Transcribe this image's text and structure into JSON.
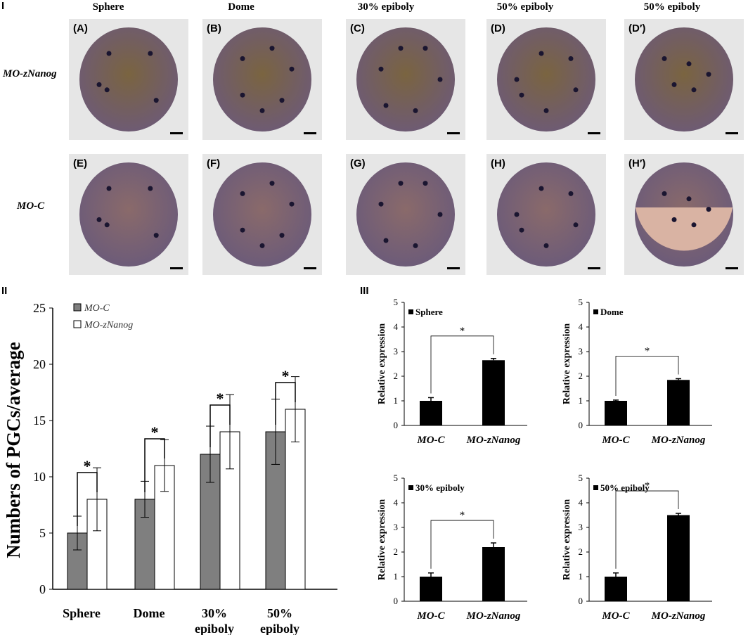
{
  "panel_labels": {
    "p1": "I",
    "p2": "II",
    "p3": "III"
  },
  "stages": [
    "Sphere",
    "Dome",
    "30% epiboly",
    "50% epiboly",
    "50% epiboly"
  ],
  "rows": [
    "MO-zNanog",
    "MO-C"
  ],
  "image_labels": [
    [
      "(A)",
      "(B)",
      "(C)",
      "(D)",
      "(D′)"
    ],
    [
      "(E)",
      "(F)",
      "(G)",
      "(H)",
      "(H′)"
    ]
  ],
  "colors": {
    "mo_c": "#7f7f7f",
    "mo_znanog": "#ffffff",
    "bar_black": "#000000",
    "embryo_top": "#7d6a55",
    "embryo_bottom": "#6a5a72"
  },
  "chart_data": [
    {
      "type": "bar",
      "ylabel": "Numbers of PGCs/average",
      "ylim": [
        0,
        25
      ],
      "yticks": [
        0,
        5,
        10,
        15,
        20,
        25
      ],
      "categories": [
        "Sphere",
        "Dome",
        "30% epiboly",
        "50% epiboly"
      ],
      "category_lines": [
        [
          "Sphere"
        ],
        [
          "Dome"
        ],
        [
          "30%",
          "epiboly"
        ],
        [
          "50%",
          "epiboly"
        ]
      ],
      "legend": "top-left",
      "significance": "*",
      "series": [
        {
          "name": "MO-C",
          "values": [
            5,
            8,
            12,
            14
          ],
          "errors": [
            1.5,
            1.6,
            2.5,
            2.9
          ]
        },
        {
          "name": "MO-zNanog",
          "values": [
            8,
            11,
            14,
            16
          ],
          "errors": [
            2.8,
            2.3,
            3.3,
            2.9
          ]
        }
      ]
    },
    {
      "type": "bar",
      "title": "Sphere",
      "ylabel": "Relative expression",
      "ylim": [
        0,
        5
      ],
      "categories": [
        "MO-C",
        "MO-zNanog"
      ],
      "values": [
        1.0,
        2.65
      ],
      "errors": [
        0.13,
        0.07
      ],
      "significance": "*"
    },
    {
      "type": "bar",
      "title": "Dome",
      "ylabel": "Relative expression",
      "ylim": [
        0,
        5
      ],
      "categories": [
        "MO-C",
        "MO-zNanog"
      ],
      "values": [
        1.0,
        1.85
      ],
      "errors": [
        0.03,
        0.05
      ],
      "significance": "*"
    },
    {
      "type": "bar",
      "title": "30% epiboly",
      "ylabel": "Relative expression",
      "ylim": [
        0,
        5
      ],
      "categories": [
        "MO-C",
        "MO-zNanog"
      ],
      "values": [
        1.0,
        2.2
      ],
      "errors": [
        0.15,
        0.17
      ],
      "significance": "*"
    },
    {
      "type": "bar",
      "title": "50% epiboly",
      "ylabel": "Relative expression",
      "ylim": [
        0,
        5
      ],
      "categories": [
        "MO-C",
        "MO-zNanog"
      ],
      "values": [
        1.0,
        3.5
      ],
      "errors": [
        0.15,
        0.07
      ],
      "significance": "*"
    }
  ]
}
